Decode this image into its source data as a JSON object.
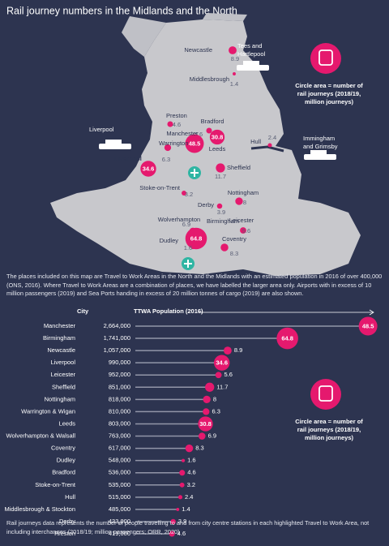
{
  "title": "Rail journey numbers in the Midlands and the North",
  "map": {
    "places": [
      {
        "name": "Newcastle",
        "value": 8.9
      },
      {
        "name": "Middlesbrough",
        "value": 1.4
      },
      {
        "name": "Preston",
        "value": 4.6
      },
      {
        "name": "Bradford",
        "value": 4.6
      },
      {
        "name": "Leeds",
        "value": 30.8
      },
      {
        "name": "Manchester",
        "value": 48.5
      },
      {
        "name": "Warrington",
        "value": 6.3
      },
      {
        "name": "Liverpool",
        "value": 34.6
      },
      {
        "name": "Sheffield",
        "value": 11.7
      },
      {
        "name": "Hull",
        "value": 2.4
      },
      {
        "name": "Stoke-on-Trent",
        "value": 3.2
      },
      {
        "name": "Nottingham",
        "value": 8
      },
      {
        "name": "Derby",
        "value": 3.9
      },
      {
        "name": "Wolverhampton",
        "value": 6.9
      },
      {
        "name": "Birmingham",
        "value": 64.8
      },
      {
        "name": "Leicester",
        "value": 5.6
      },
      {
        "name": "Dudley",
        "value": 1.6
      },
      {
        "name": "Coventry",
        "value": 8.3
      }
    ],
    "ports": [
      {
        "name_lines": [
          "Tees and",
          "Hartlepool"
        ]
      },
      {
        "name_lines": [
          "Liverpool"
        ]
      },
      {
        "name_lines": [
          "Immingham",
          "and Grimsby"
        ]
      }
    ],
    "legend_lines": [
      "Circle area = number of",
      "rail journeys (2018/19,",
      "million journeys)"
    ]
  },
  "description": "The places included on this map are Travel to Work Areas in the North and the Midlands with an estimated population in 2016 of over 400,000 (ONS, 2016). Where Travel to Work Areas are a combination of places, we have labelled the larger area only. Airports with in excess of 10 million passengers (2019) and Sea Ports handing in excess of 20 million tonnes of cargo (2019) are also shown.",
  "chart_data": {
    "type": "lollipop",
    "category_label": "City",
    "x_label": "TTWA Population (2016)",
    "categories": [
      "Manchester",
      "Birmingham",
      "Newcastle",
      "Liverpool",
      "Leicester",
      "Sheffield",
      "Nottingham",
      "Warrington & Wigan",
      "Leeds",
      "Wolverhampton & Walsall",
      "Coventry",
      "Dudley",
      "Bradford",
      "Stoke-on-Trent",
      "Hull",
      "Middlesbrough & Stockton",
      "Derby",
      "Preston"
    ],
    "values": [
      2664000,
      1741000,
      1057000,
      990000,
      952000,
      851000,
      818000,
      810000,
      803000,
      763000,
      617000,
      548000,
      536000,
      535000,
      515000,
      485000,
      433000,
      419000
    ],
    "value_labels": [
      "2,664,000",
      "1,741,000",
      "1,057,000",
      "990,000",
      "952,000",
      "851,000",
      "818,000",
      "810,000",
      "803,000",
      "763,000",
      "617,000",
      "548,000",
      "536,000",
      "535,000",
      "515,000",
      "485,000",
      "433,000",
      "419,000"
    ],
    "bubble_values": [
      48.5,
      64.8,
      8.9,
      34.6,
      5.6,
      11.7,
      8,
      6.3,
      30.8,
      6.9,
      8.3,
      1.6,
      4.6,
      3.2,
      2.4,
      1.4,
      3.9,
      4.6
    ],
    "xlim": [
      0,
      2700000
    ],
    "color": "#e5196e",
    "legend_lines": [
      "Circle area = number of",
      "rail journeys (2018/19,",
      "million journeys)"
    ]
  },
  "footnote": "Rail journeys data represents the number of people travelling to and from city centre stations in each highlighted Travel to Work Area, not including interchanges (2018/19; million passengers; ORR, 2020)"
}
